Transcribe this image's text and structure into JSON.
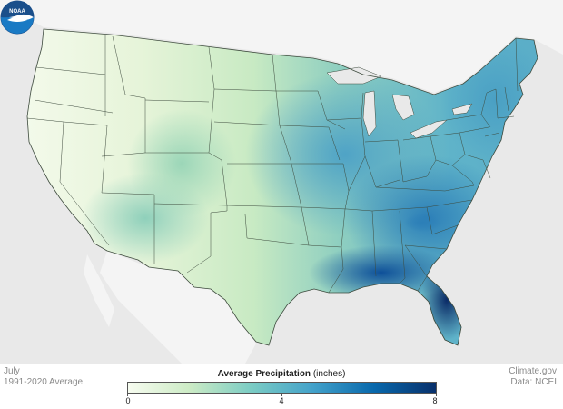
{
  "map": {
    "month": "July",
    "period": "1991-2020 Average",
    "legend": {
      "title": "Average Precipitation",
      "unit": "(inches)",
      "min": 0,
      "max": 8,
      "ticks": [
        "0",
        "4",
        "8"
      ],
      "colors": [
        "#f7fcf0",
        "#ccebc5",
        "#7bccc4",
        "#43a2ca",
        "#0868ac",
        "#08306b"
      ]
    },
    "credit_site": "Climate.gov",
    "credit_data": "Data: NCEI",
    "logo_text": "NOAA",
    "colors": {
      "land_outside": "#f4f4f4",
      "water": "#e9e9e9",
      "state_border": "#3d4a3d",
      "noaa_blue": "#1a4f8b"
    }
  }
}
